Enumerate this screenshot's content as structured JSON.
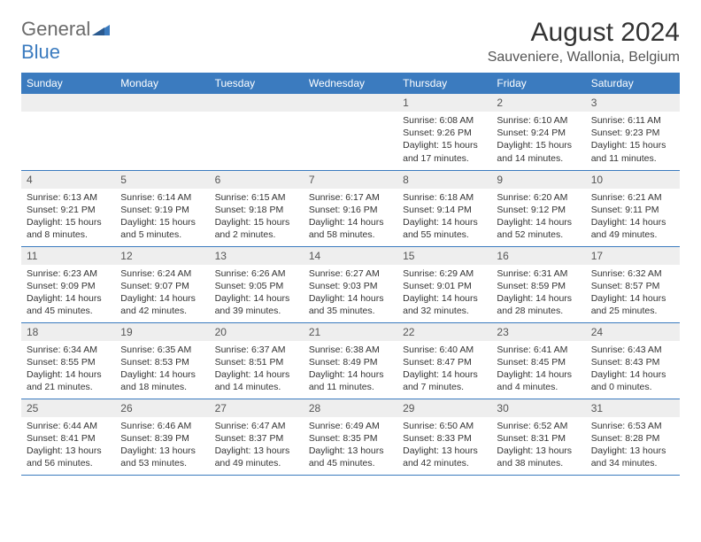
{
  "logo": {
    "word1": "General",
    "word2": "Blue"
  },
  "title": "August 2024",
  "location": "Sauveniere, Wallonia, Belgium",
  "colors": {
    "header_bg": "#3b7bbf",
    "header_text": "#ffffff",
    "daynum_bg": "#eeeeee",
    "border": "#3b7bbf",
    "logo_gray": "#6b6b6b",
    "logo_blue": "#3b7bbf"
  },
  "weekdays": [
    "Sunday",
    "Monday",
    "Tuesday",
    "Wednesday",
    "Thursday",
    "Friday",
    "Saturday"
  ],
  "weeks": [
    [
      null,
      null,
      null,
      null,
      {
        "n": "1",
        "sr": "Sunrise: 6:08 AM",
        "ss": "Sunset: 9:26 PM",
        "d1": "Daylight: 15 hours",
        "d2": "and 17 minutes."
      },
      {
        "n": "2",
        "sr": "Sunrise: 6:10 AM",
        "ss": "Sunset: 9:24 PM",
        "d1": "Daylight: 15 hours",
        "d2": "and 14 minutes."
      },
      {
        "n": "3",
        "sr": "Sunrise: 6:11 AM",
        "ss": "Sunset: 9:23 PM",
        "d1": "Daylight: 15 hours",
        "d2": "and 11 minutes."
      }
    ],
    [
      {
        "n": "4",
        "sr": "Sunrise: 6:13 AM",
        "ss": "Sunset: 9:21 PM",
        "d1": "Daylight: 15 hours",
        "d2": "and 8 minutes."
      },
      {
        "n": "5",
        "sr": "Sunrise: 6:14 AM",
        "ss": "Sunset: 9:19 PM",
        "d1": "Daylight: 15 hours",
        "d2": "and 5 minutes."
      },
      {
        "n": "6",
        "sr": "Sunrise: 6:15 AM",
        "ss": "Sunset: 9:18 PM",
        "d1": "Daylight: 15 hours",
        "d2": "and 2 minutes."
      },
      {
        "n": "7",
        "sr": "Sunrise: 6:17 AM",
        "ss": "Sunset: 9:16 PM",
        "d1": "Daylight: 14 hours",
        "d2": "and 58 minutes."
      },
      {
        "n": "8",
        "sr": "Sunrise: 6:18 AM",
        "ss": "Sunset: 9:14 PM",
        "d1": "Daylight: 14 hours",
        "d2": "and 55 minutes."
      },
      {
        "n": "9",
        "sr": "Sunrise: 6:20 AM",
        "ss": "Sunset: 9:12 PM",
        "d1": "Daylight: 14 hours",
        "d2": "and 52 minutes."
      },
      {
        "n": "10",
        "sr": "Sunrise: 6:21 AM",
        "ss": "Sunset: 9:11 PM",
        "d1": "Daylight: 14 hours",
        "d2": "and 49 minutes."
      }
    ],
    [
      {
        "n": "11",
        "sr": "Sunrise: 6:23 AM",
        "ss": "Sunset: 9:09 PM",
        "d1": "Daylight: 14 hours",
        "d2": "and 45 minutes."
      },
      {
        "n": "12",
        "sr": "Sunrise: 6:24 AM",
        "ss": "Sunset: 9:07 PM",
        "d1": "Daylight: 14 hours",
        "d2": "and 42 minutes."
      },
      {
        "n": "13",
        "sr": "Sunrise: 6:26 AM",
        "ss": "Sunset: 9:05 PM",
        "d1": "Daylight: 14 hours",
        "d2": "and 39 minutes."
      },
      {
        "n": "14",
        "sr": "Sunrise: 6:27 AM",
        "ss": "Sunset: 9:03 PM",
        "d1": "Daylight: 14 hours",
        "d2": "and 35 minutes."
      },
      {
        "n": "15",
        "sr": "Sunrise: 6:29 AM",
        "ss": "Sunset: 9:01 PM",
        "d1": "Daylight: 14 hours",
        "d2": "and 32 minutes."
      },
      {
        "n": "16",
        "sr": "Sunrise: 6:31 AM",
        "ss": "Sunset: 8:59 PM",
        "d1": "Daylight: 14 hours",
        "d2": "and 28 minutes."
      },
      {
        "n": "17",
        "sr": "Sunrise: 6:32 AM",
        "ss": "Sunset: 8:57 PM",
        "d1": "Daylight: 14 hours",
        "d2": "and 25 minutes."
      }
    ],
    [
      {
        "n": "18",
        "sr": "Sunrise: 6:34 AM",
        "ss": "Sunset: 8:55 PM",
        "d1": "Daylight: 14 hours",
        "d2": "and 21 minutes."
      },
      {
        "n": "19",
        "sr": "Sunrise: 6:35 AM",
        "ss": "Sunset: 8:53 PM",
        "d1": "Daylight: 14 hours",
        "d2": "and 18 minutes."
      },
      {
        "n": "20",
        "sr": "Sunrise: 6:37 AM",
        "ss": "Sunset: 8:51 PM",
        "d1": "Daylight: 14 hours",
        "d2": "and 14 minutes."
      },
      {
        "n": "21",
        "sr": "Sunrise: 6:38 AM",
        "ss": "Sunset: 8:49 PM",
        "d1": "Daylight: 14 hours",
        "d2": "and 11 minutes."
      },
      {
        "n": "22",
        "sr": "Sunrise: 6:40 AM",
        "ss": "Sunset: 8:47 PM",
        "d1": "Daylight: 14 hours",
        "d2": "and 7 minutes."
      },
      {
        "n": "23",
        "sr": "Sunrise: 6:41 AM",
        "ss": "Sunset: 8:45 PM",
        "d1": "Daylight: 14 hours",
        "d2": "and 4 minutes."
      },
      {
        "n": "24",
        "sr": "Sunrise: 6:43 AM",
        "ss": "Sunset: 8:43 PM",
        "d1": "Daylight: 14 hours",
        "d2": "and 0 minutes."
      }
    ],
    [
      {
        "n": "25",
        "sr": "Sunrise: 6:44 AM",
        "ss": "Sunset: 8:41 PM",
        "d1": "Daylight: 13 hours",
        "d2": "and 56 minutes."
      },
      {
        "n": "26",
        "sr": "Sunrise: 6:46 AM",
        "ss": "Sunset: 8:39 PM",
        "d1": "Daylight: 13 hours",
        "d2": "and 53 minutes."
      },
      {
        "n": "27",
        "sr": "Sunrise: 6:47 AM",
        "ss": "Sunset: 8:37 PM",
        "d1": "Daylight: 13 hours",
        "d2": "and 49 minutes."
      },
      {
        "n": "28",
        "sr": "Sunrise: 6:49 AM",
        "ss": "Sunset: 8:35 PM",
        "d1": "Daylight: 13 hours",
        "d2": "and 45 minutes."
      },
      {
        "n": "29",
        "sr": "Sunrise: 6:50 AM",
        "ss": "Sunset: 8:33 PM",
        "d1": "Daylight: 13 hours",
        "d2": "and 42 minutes."
      },
      {
        "n": "30",
        "sr": "Sunrise: 6:52 AM",
        "ss": "Sunset: 8:31 PM",
        "d1": "Daylight: 13 hours",
        "d2": "and 38 minutes."
      },
      {
        "n": "31",
        "sr": "Sunrise: 6:53 AM",
        "ss": "Sunset: 8:28 PM",
        "d1": "Daylight: 13 hours",
        "d2": "and 34 minutes."
      }
    ]
  ]
}
